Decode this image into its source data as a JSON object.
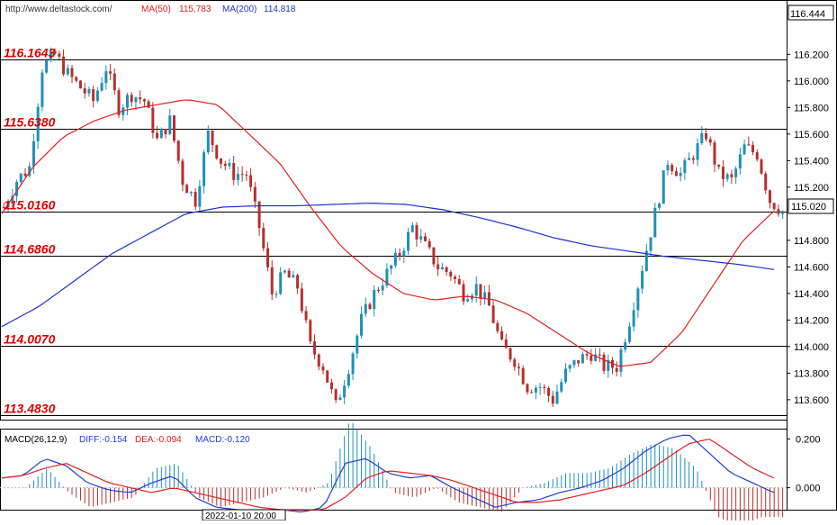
{
  "header": {
    "url": "http://www.deltastock.com/",
    "ma50_label": "MA(50)",
    "ma50_value": "115.783",
    "ma200_label": "MA(200)",
    "ma200_value": "114.818"
  },
  "price_axis": {
    "top_label": "116.444",
    "current_price": "115.020",
    "ticks": [
      "116.200",
      "116.000",
      "115.800",
      "115.600",
      "115.400",
      "115.200",
      "114.800",
      "114.600",
      "114.400",
      "114.200",
      "114.000",
      "113.800",
      "113.600"
    ]
  },
  "levels": [
    "116.1643",
    "115.6380",
    "115.0160",
    "114.6860",
    "114.0070",
    "113.4830"
  ],
  "macd": {
    "title": "MACD(26,12,9)",
    "diff_label": "DIFF:-0.154",
    "dea_label": "DEA:-0.094",
    "macd_label": "MACD:-0.120",
    "ticks": [
      "0.200",
      "0.000"
    ]
  },
  "time_axis": {
    "cursor_label": "2022-01-10 20:00"
  },
  "colors": {
    "up": "#1f8fb8",
    "down": "#b5302c",
    "ma50": "#e02020",
    "ma200": "#2030d0",
    "level_text": "#e00000",
    "diff": "#1f3fd8",
    "dea": "#e02020"
  },
  "chart_data": {
    "type": "candlestick",
    "price_range": [
      113.45,
      116.46
    ],
    "macd_range": [
      -0.09,
      0.22
    ],
    "levels": [
      116.1643,
      115.638,
      115.016,
      114.686,
      114.007,
      113.483
    ],
    "close_path": [
      115.05,
      115.25,
      115.35,
      116.1,
      116.2,
      116.05,
      115.95,
      115.85,
      116.1,
      115.8,
      115.9,
      115.85,
      115.55,
      115.7,
      115.25,
      115.1,
      115.6,
      115.4,
      115.3,
      115.3,
      114.9,
      114.4,
      114.55,
      114.45,
      114.0,
      113.85,
      113.55,
      113.85,
      114.2,
      114.4,
      114.55,
      114.7,
      114.9,
      114.75,
      114.6,
      114.55,
      114.4,
      114.45,
      114.3,
      114.0,
      113.9,
      113.7,
      113.7,
      113.6,
      113.8,
      113.9,
      113.95,
      113.85,
      113.85,
      114.2,
      114.6,
      115.0,
      115.4,
      115.3,
      115.45,
      115.6,
      115.3,
      115.25,
      115.5,
      115.45,
      115.1,
      115.02
    ],
    "ma50_path": [
      115.0,
      115.35,
      115.58,
      115.7,
      115.78,
      115.82,
      115.86,
      115.82,
      115.6,
      115.38,
      115.05,
      114.75,
      114.55,
      114.4,
      114.35,
      114.38,
      114.35,
      114.25,
      114.1,
      113.95,
      113.85,
      113.88,
      114.1,
      114.45,
      114.8,
      115.02
    ],
    "ma200_path": [
      114.15,
      114.3,
      114.5,
      114.7,
      114.85,
      115.0,
      115.05,
      115.06,
      115.06,
      115.07,
      115.08,
      115.07,
      115.03,
      114.97,
      114.9,
      114.82,
      114.76,
      114.72,
      114.68,
      114.65,
      114.62,
      114.58
    ],
    "macd_diff_path": [
      0.04,
      0.05,
      0.12,
      0.09,
      0.02,
      -0.01,
      -0.02,
      0.02,
      0.05,
      -0.04,
      -0.08,
      -0.09,
      -0.1,
      -0.09,
      -0.1,
      -0.08,
      0.1,
      0.12,
      0.06,
      0.04,
      0.05,
      0.0,
      -0.04,
      -0.08,
      -0.06,
      -0.05,
      -0.02,
      0.0,
      0.03,
      0.08,
      0.15,
      0.2,
      0.22,
      0.14,
      0.06,
      0.02,
      -0.02
    ],
    "macd_dea_path": [
      0.04,
      0.05,
      0.08,
      0.1,
      0.06,
      0.02,
      0.0,
      -0.02,
      0.0,
      -0.02,
      -0.04,
      -0.06,
      -0.08,
      -0.09,
      -0.09,
      -0.09,
      -0.04,
      0.04,
      0.07,
      0.06,
      0.05,
      0.03,
      0.0,
      -0.03,
      -0.06,
      -0.06,
      -0.05,
      -0.03,
      -0.01,
      0.01,
      0.06,
      0.12,
      0.18,
      0.2,
      0.14,
      0.08,
      0.04
    ]
  }
}
